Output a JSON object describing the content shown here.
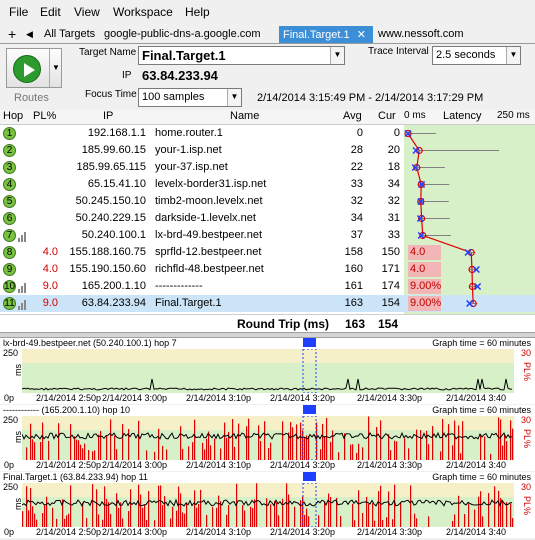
{
  "menu": [
    "File",
    "Edit",
    "View",
    "Workspace",
    "Help"
  ],
  "tabs": {
    "add": "+",
    "all_targets": "All Targets",
    "items": [
      "google-public-dns-a.google.com",
      "Final.Target.1",
      "www.nessoft.com"
    ],
    "close": "✕"
  },
  "controls": {
    "routes_label": "Routes",
    "target_name_label": "Target Name",
    "target_name_value": "Final.Target.1",
    "ip_label": "IP",
    "ip_value": "63.84.233.94",
    "focus_time_label": "Focus Time",
    "focus_time_value": "100 samples",
    "trace_interval_label": "Trace Interval",
    "trace_interval_value": "2.5 seconds",
    "time_range": "2/14/2014 3:15:49 PM - 2/14/2014 3:17:29 PM"
  },
  "table": {
    "headers": {
      "hop": "Hop",
      "pl": "PL%",
      "ip": "IP",
      "name": "Name",
      "avg": "Avg",
      "cur": "Cur",
      "zero": "0 ms",
      "latency": "Latency",
      "max": "250 ms"
    },
    "rows": [
      {
        "hop": "1",
        "pl": "",
        "ip": "192.168.1.1",
        "name": "home.router.1",
        "avg": "0",
        "cur": "0",
        "plbox": ""
      },
      {
        "hop": "2",
        "pl": "",
        "ip": "185.99.60.15",
        "name": "your-1.isp.net",
        "avg": "28",
        "cur": "20",
        "plbox": ""
      },
      {
        "hop": "3",
        "pl": "",
        "ip": "185.99.65.115",
        "name": "your-37.isp.net",
        "avg": "22",
        "cur": "18",
        "plbox": ""
      },
      {
        "hop": "4",
        "pl": "",
        "ip": "65.15.41.10",
        "name": "levelx-border31.isp.net",
        "avg": "33",
        "cur": "34",
        "plbox": ""
      },
      {
        "hop": "5",
        "pl": "",
        "ip": "50.245.150.10",
        "name": "timb2-moon.levelx.net",
        "avg": "32",
        "cur": "32",
        "plbox": ""
      },
      {
        "hop": "6",
        "pl": "",
        "ip": "50.240.229.15",
        "name": "darkside-1.levelx.net",
        "avg": "34",
        "cur": "31",
        "plbox": ""
      },
      {
        "hop": "7",
        "pl": "",
        "ip": "50.240.100.1",
        "name": "lx-brd-49.bestpeer.net",
        "avg": "37",
        "cur": "33",
        "plbox": ""
      },
      {
        "hop": "8",
        "pl": "4.0",
        "ip": "155.188.160.75",
        "name": "sprfld-12.bestpeer.net",
        "avg": "158",
        "cur": "150",
        "plbox": "4.0"
      },
      {
        "hop": "9",
        "pl": "4.0",
        "ip": "155.190.150.60",
        "name": "richfld-48.bestpeer.net",
        "avg": "160",
        "cur": "171",
        "plbox": "4.0"
      },
      {
        "hop": "10",
        "pl": "9.0",
        "ip": "165.200.1.10",
        "name": "-------------",
        "avg": "161",
        "cur": "174",
        "plbox": "9.00%"
      },
      {
        "hop": "11",
        "pl": "9.0",
        "ip": "63.84.233.94",
        "name": "Final.Target.1",
        "avg": "163",
        "cur": "154",
        "plbox": "9.00%"
      }
    ],
    "round_trip_label": "Round Trip (ms)",
    "round_trip_avg": "163",
    "round_trip_cur": "154"
  },
  "graphs": [
    {
      "title": "lx-brd-49.bestpeer.net (50.240.100.1) hop 7",
      "time_label": "Graph time = 60 minutes",
      "y_max": "250",
      "y_unit": "ms",
      "pl_max": "30",
      "pl_unit": "PL%",
      "loss": "low"
    },
    {
      "title": "------------ (165.200.1.10) hop 10",
      "time_label": "Graph time = 60 minutes",
      "y_max": "250",
      "y_unit": "ms",
      "pl_max": "30",
      "pl_unit": "PL%",
      "loss": "high"
    },
    {
      "title": "Final.Target.1 (63.84.233.94) hop 11",
      "time_label": "Graph time = 60 minutes",
      "y_max": "250",
      "y_unit": "ms",
      "pl_max": "30",
      "pl_unit": "PL%",
      "loss": "high"
    }
  ],
  "x_ticks": [
    "0p",
    "2/14/2014 2:50p",
    "2/14/2014 3:00p",
    "2/14/2014 3:10p",
    "2/14/2014 3:20p",
    "2/14/2014 3:30p",
    "2/14/2014 3:40"
  ],
  "colors": {
    "accent": "#3c8fd6",
    "hop_green": "#79c140",
    "loss_red": "#d00000",
    "graph_bg_green": "#d8f0c8",
    "graph_bg_yellow": "#f5f0c8",
    "focus_blue": "#1f3fff"
  },
  "icons": {
    "play": "play-icon",
    "dropdown": "chevron-down-icon",
    "bars": "signal-bars-icon"
  }
}
